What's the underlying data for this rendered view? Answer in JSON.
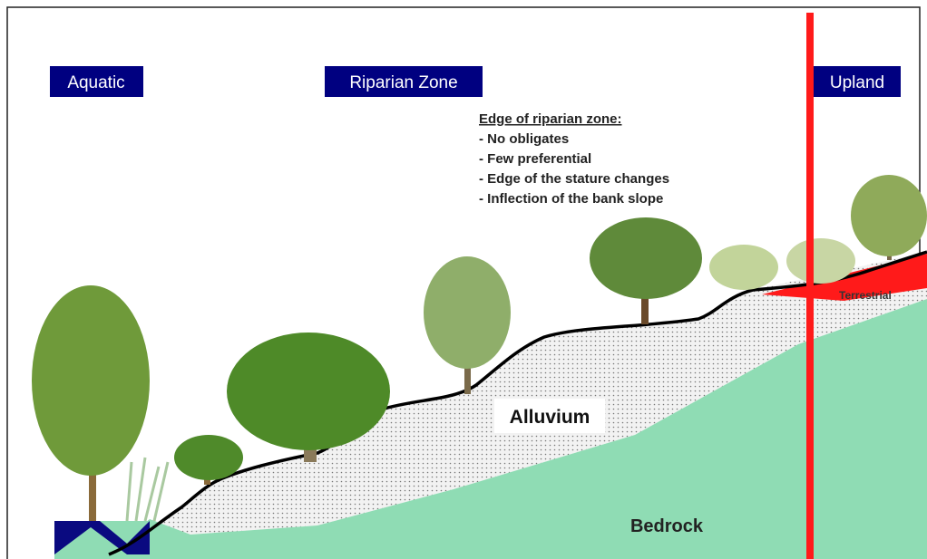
{
  "zones": {
    "aquatic": "Aquatic",
    "riparian": "Riparian Zone",
    "upland": "Upland"
  },
  "note": {
    "title": "Edge of riparian zone:",
    "items": [
      "- No obligates",
      "- Few preferential",
      "- Edge of the stature changes",
      "- Inflection of the bank slope"
    ]
  },
  "layers": {
    "terrestrial": "Terrestrial",
    "alluvium": "Alluvium",
    "bedrock": "Bedrock"
  }
}
